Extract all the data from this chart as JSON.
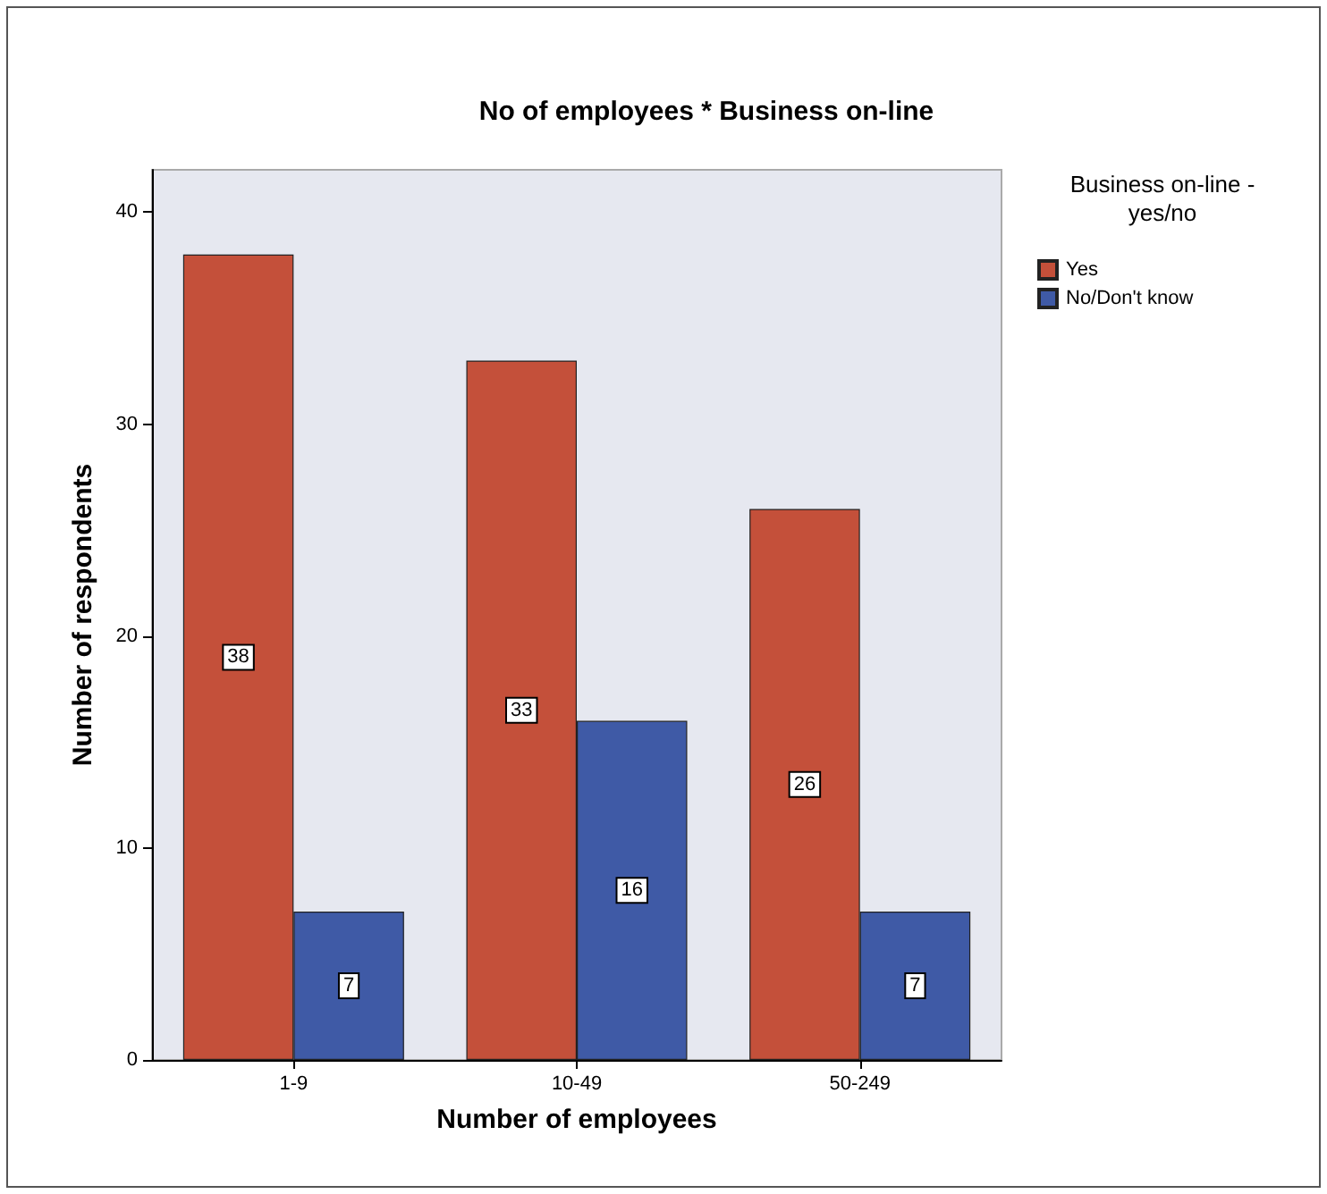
{
  "chart_data": {
    "type": "bar",
    "title": "No of employees * Business on-line",
    "xlabel": "Number of employees",
    "ylabel": "Number of respondents",
    "legend_title": "Business on-line -\nyes/no",
    "categories": [
      "1-9",
      "10-49",
      "50-249"
    ],
    "series": [
      {
        "name": "Yes",
        "color": "#c4503a",
        "values": [
          38,
          33,
          26
        ]
      },
      {
        "name": "No/Don't know",
        "color": "#3f5aa6",
        "values": [
          7,
          16,
          7
        ]
      }
    ],
    "ylim": [
      0,
      42
    ],
    "yticks": [
      0,
      10,
      20,
      30,
      40
    ],
    "grid": false,
    "legend": "right",
    "data_labels": true
  }
}
